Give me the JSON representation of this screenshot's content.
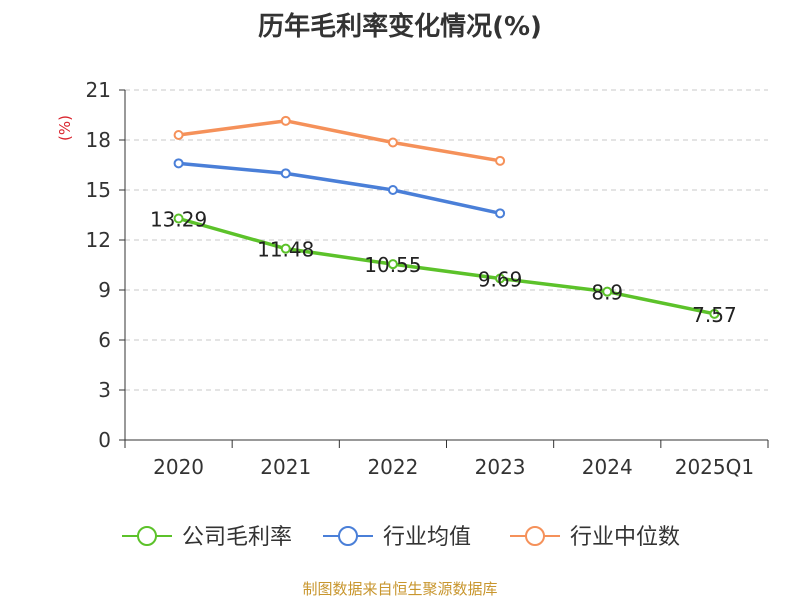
{
  "chart_data": {
    "type": "line",
    "title": "历年毛利率变化情况(%)",
    "ylabel": "(%)",
    "xlabel": "",
    "categories": [
      "2020",
      "2021",
      "2022",
      "2023",
      "2024",
      "2025Q1"
    ],
    "ylim": [
      0,
      21
    ],
    "yticks": [
      0,
      3,
      6,
      9,
      12,
      15,
      18,
      21
    ],
    "grid": true,
    "legend_position": "bottom",
    "series": [
      {
        "name": "公司毛利率",
        "color": "#5cc22a",
        "values": [
          13.29,
          11.48,
          10.55,
          9.69,
          8.9,
          7.57
        ],
        "labels": [
          "13.29",
          "11.48",
          "10.55",
          "9.69",
          "8.9",
          "7.57"
        ]
      },
      {
        "name": "行业均值",
        "color": "#4a7fd8",
        "values": [
          16.6,
          16.0,
          15.0,
          13.6,
          null,
          null
        ]
      },
      {
        "name": "行业中位数",
        "color": "#f5915a",
        "values": [
          18.3,
          19.15,
          17.85,
          16.75,
          null,
          null
        ]
      }
    ]
  },
  "source": "制图数据来自恒生聚源数据库"
}
